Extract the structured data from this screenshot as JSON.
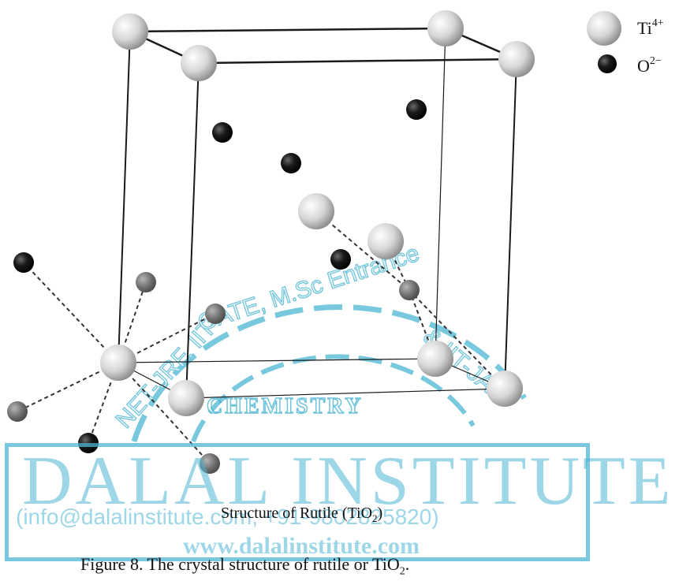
{
  "diagram": {
    "legend": {
      "ti": {
        "symbol": "Ti",
        "charge": "4+",
        "color": "#d9d9d9"
      },
      "o": {
        "symbol": "O",
        "charge": "2−",
        "color": "#111111"
      }
    },
    "structure_label": {
      "text": "Structure of Rutile (TiO",
      "sub": "2",
      "tail": ")"
    }
  },
  "caption": {
    "text": "Figure 8.  The crystal structure of rutile or TiO",
    "sub": "2",
    "tail": "."
  },
  "watermark": {
    "arc_text": "NET-JRF, IIT-GATE, M.Sc Entrance & IIT-JAM",
    "subject": "CHEMISTRY",
    "name": "DALAL INSTITUTE",
    "contact": "(info@dalalinstitute.com, +91-9802825820)",
    "website": "www.dalalinstitute.com",
    "color": "#4cb6d4"
  }
}
